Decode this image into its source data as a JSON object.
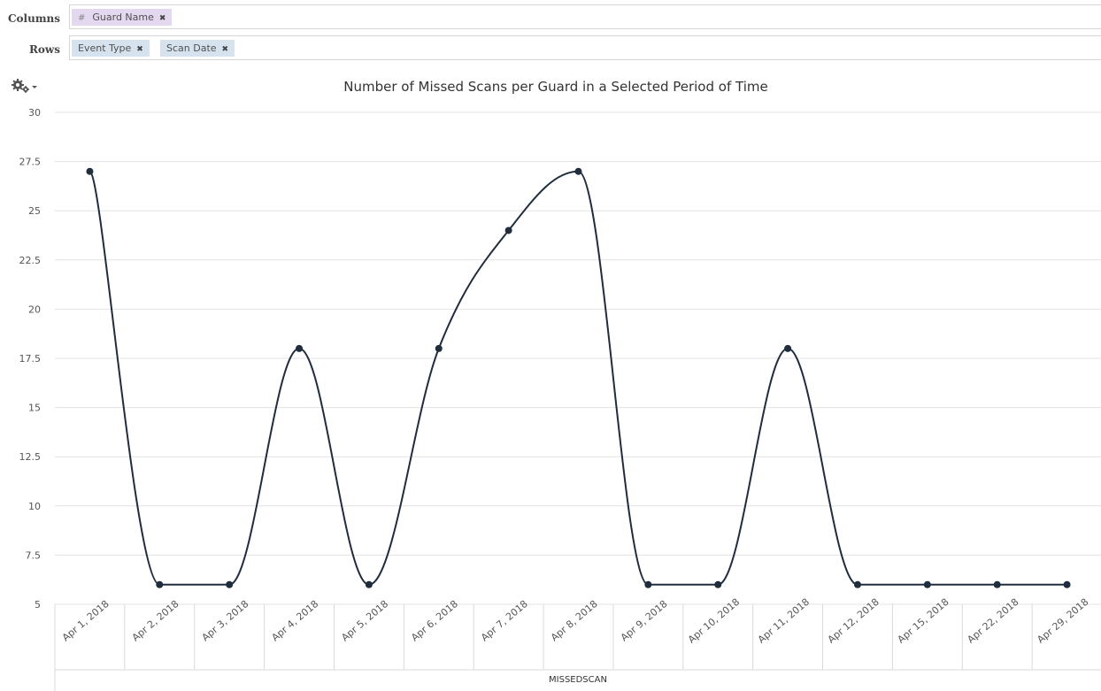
{
  "shelves": {
    "columns_label": "Columns",
    "rows_label": "Rows",
    "columns": [
      {
        "prefix": "#",
        "label": "Guard Name",
        "remove_icon": "close-icon",
        "kind": "measure"
      }
    ],
    "rows": [
      {
        "label": "Event Type",
        "remove_icon": "close-icon",
        "kind": "dimension"
      },
      {
        "label": "Scan Date",
        "remove_icon": "close-icon",
        "kind": "dimension"
      }
    ]
  },
  "toolbar": {
    "settings_icon": "gear-icon",
    "dropdown_icon": "caret-down-icon"
  },
  "chart_data": {
    "type": "line",
    "title": "Number of Missed Scans per Guard in a Selected Period of Time",
    "categories": [
      "Apr 1, 2018",
      "Apr 2, 2018",
      "Apr 3, 2018",
      "Apr 4, 2018",
      "Apr 5, 2018",
      "Apr 6, 2018",
      "Apr 7, 2018",
      "Apr 8, 2018",
      "Apr 9, 2018",
      "Apr 10, 2018",
      "Apr 11, 2018",
      "Apr 12, 2018",
      "Apr 15, 2018",
      "Apr 22, 2018",
      "Apr 29, 2018"
    ],
    "series": [
      {
        "values": [
          27,
          6,
          6,
          18,
          6,
          18,
          24,
          27,
          6,
          6,
          18,
          6,
          6,
          6,
          6
        ]
      }
    ],
    "group_label": "MISSEDSCAN",
    "ylim": [
      5,
      30
    ],
    "yticks": [
      5,
      7.5,
      10,
      12.5,
      15,
      17.5,
      20,
      22.5,
      25,
      27.5,
      30
    ],
    "xlabel": "",
    "ylabel": "",
    "grid": true,
    "legend": "none",
    "line_color": "#1f2d3d",
    "grid_color": "#e3e3e3",
    "curve": "smooth"
  }
}
